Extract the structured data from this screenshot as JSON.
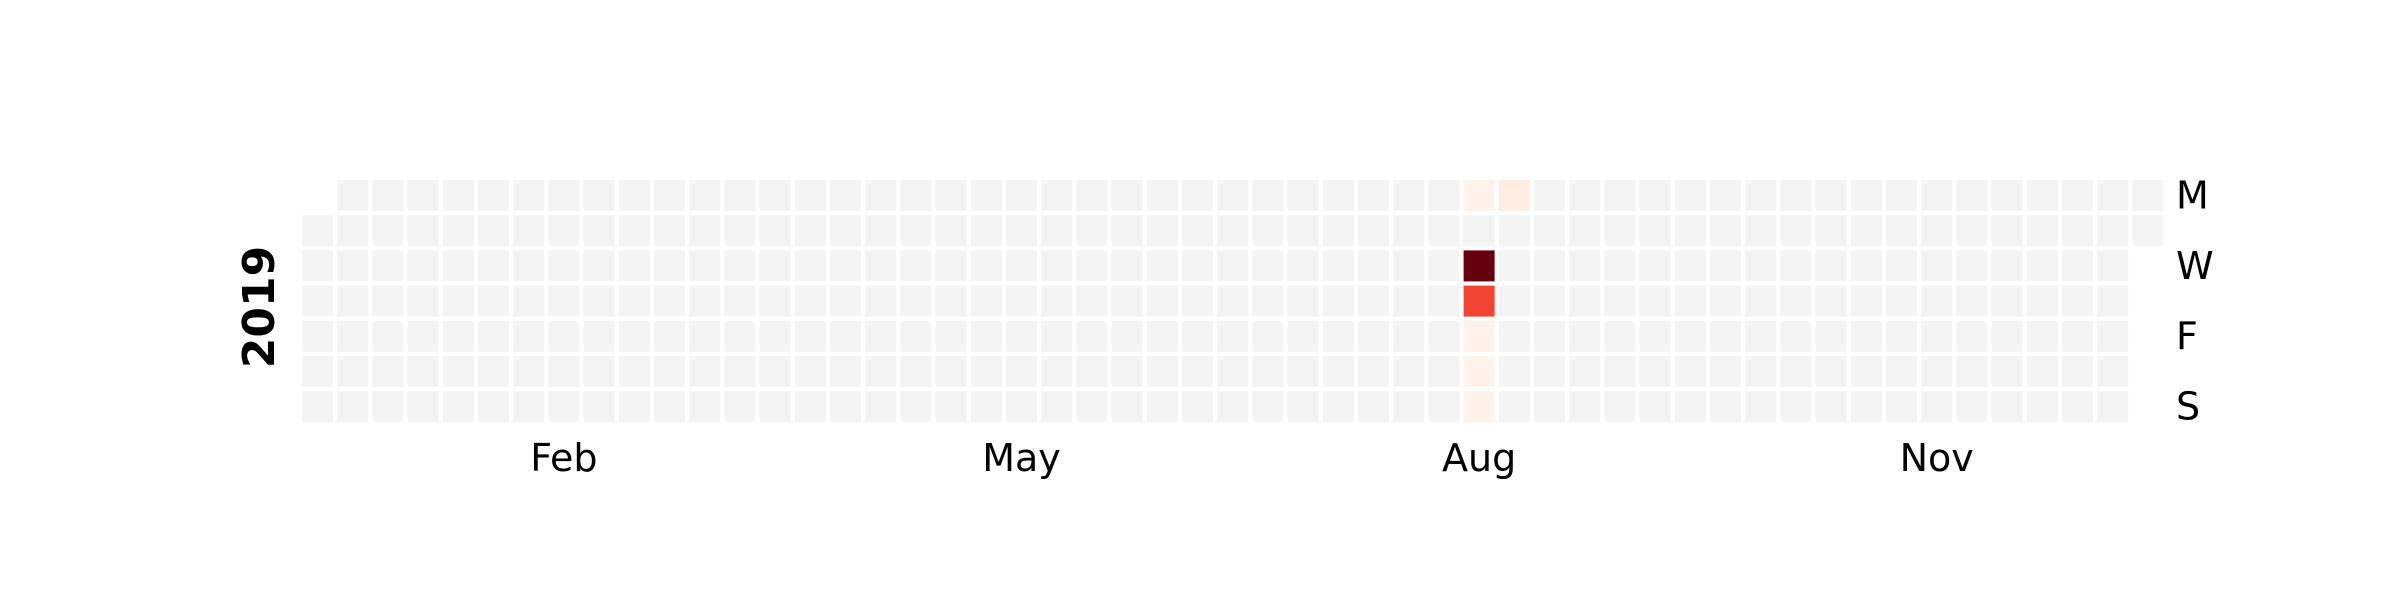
{
  "chart_data": {
    "type": "heatmap",
    "title": "",
    "year_label": "2019",
    "day_labels": [
      {
        "text": "M",
        "row": 0
      },
      {
        "text": "W",
        "row": 2
      },
      {
        "text": "F",
        "row": 4
      },
      {
        "text": "S",
        "row": 6
      }
    ],
    "month_labels": [
      {
        "text": "Feb",
        "week": 7
      },
      {
        "text": "May",
        "week": 20
      },
      {
        "text": "Aug",
        "week": 33
      },
      {
        "text": "Nov",
        "week": 46
      }
    ],
    "start_date": "2019-01-01",
    "end_date": "2019-12-31",
    "empty_color": "#f4f4f4",
    "colorscale": [
      "#fff5f0",
      "#fee0d2",
      "#fcbba1",
      "#fc9272",
      "#fb6a4a",
      "#ef3b2c",
      "#cb181d",
      "#a50f15",
      "#67000d"
    ],
    "value_range": [
      0,
      1
    ],
    "values": [
      {
        "date": "2019-08-19",
        "value": 0.02
      },
      {
        "date": "2019-08-21",
        "value": 1.0
      },
      {
        "date": "2019-08-22",
        "value": 0.6
      },
      {
        "date": "2019-08-23",
        "value": 0.02
      },
      {
        "date": "2019-08-24",
        "value": 0.02
      },
      {
        "date": "2019-08-25",
        "value": 0.02
      },
      {
        "date": "2019-08-26",
        "value": 0.05
      }
    ],
    "grid": false,
    "legend": "none"
  }
}
